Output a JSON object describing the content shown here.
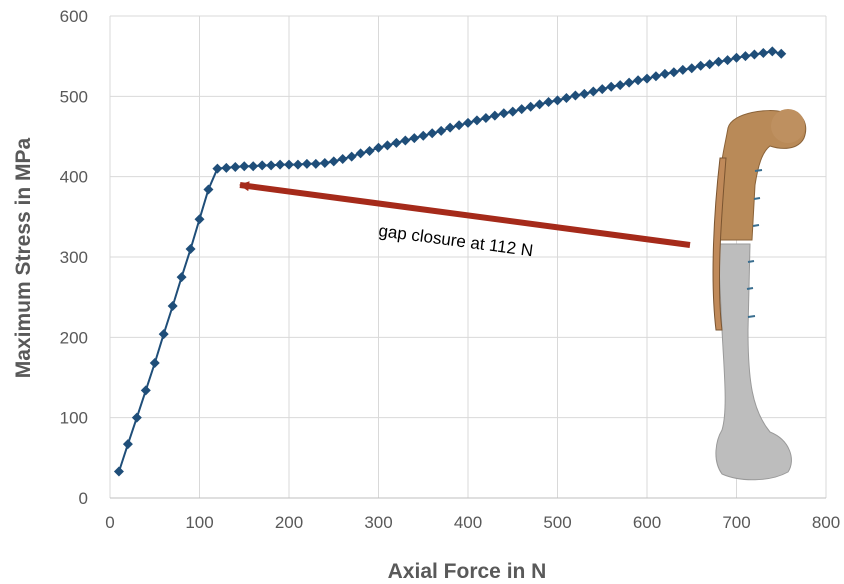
{
  "chart_data": {
    "type": "line",
    "xlabel": "Axial Force in N",
    "ylabel": "Maximum Stress in MPa",
    "xlim": [
      0,
      800
    ],
    "ylim": [
      0,
      600
    ],
    "xticks": [
      0,
      100,
      200,
      300,
      400,
      500,
      600,
      700,
      800
    ],
    "yticks": [
      0,
      100,
      200,
      300,
      400,
      500,
      600
    ],
    "grid": true,
    "legend": "none",
    "series": [
      {
        "color": "#1F4E79",
        "marker": "diamond",
        "x": [
          10,
          20,
          30,
          40,
          50,
          60,
          70,
          80,
          90,
          100,
          110,
          120,
          130,
          140,
          150,
          160,
          170,
          180,
          190,
          200,
          210,
          220,
          230,
          240,
          250,
          260,
          270,
          280,
          290,
          300,
          310,
          320,
          330,
          340,
          350,
          360,
          370,
          380,
          390,
          400,
          410,
          420,
          430,
          440,
          450,
          460,
          470,
          480,
          490,
          500,
          510,
          520,
          530,
          540,
          550,
          560,
          570,
          580,
          590,
          600,
          610,
          620,
          630,
          640,
          650,
          660,
          670,
          680,
          690,
          700,
          710,
          720,
          730,
          740,
          750
        ],
        "y": [
          33,
          67,
          100,
          134,
          168,
          204,
          239,
          275,
          310,
          347,
          384,
          410,
          411,
          412,
          413,
          413,
          414,
          414,
          415,
          415,
          415,
          416,
          416,
          417,
          419,
          422,
          425,
          429,
          432,
          436,
          439,
          442,
          445,
          448,
          451,
          454,
          457,
          461,
          464,
          467,
          470,
          473,
          476,
          479,
          481,
          484,
          487,
          490,
          493,
          495,
          498,
          501,
          503,
          506,
          509,
          512,
          514,
          517,
          520,
          522,
          525,
          528,
          530,
          533,
          535,
          538,
          540,
          543,
          545,
          548,
          550,
          552,
          554,
          556,
          553
        ]
      }
    ],
    "annotations": [
      {
        "text": "gap closure at 112 N",
        "arrow_to": [
          112,
          390
        ],
        "arrow_color": "#A52A1A"
      }
    ]
  },
  "illustration": {
    "name": "femur-plate-model",
    "colors": {
      "upper_bone": "#B98A58",
      "lower_bone": "#BDBDBD",
      "plate": "#C08A5A",
      "screws": "#3A6E8F"
    }
  }
}
